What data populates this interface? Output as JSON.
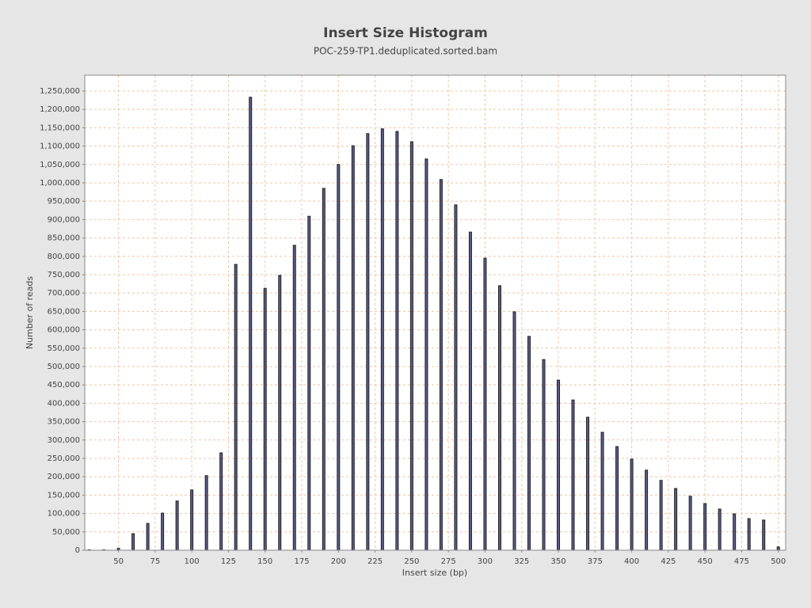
{
  "chart_data": {
    "type": "bar",
    "title": "Insert Size Histogram",
    "subtitle": "POC-259-TP1.deduplicated.sorted.bam",
    "x_label": "Insert size (bp)",
    "y_label": "Number of reads",
    "x": [
      30,
      40,
      50,
      60,
      70,
      80,
      90,
      100,
      110,
      120,
      130,
      140,
      150,
      160,
      170,
      180,
      190,
      200,
      210,
      220,
      230,
      240,
      250,
      260,
      270,
      280,
      290,
      300,
      310,
      320,
      330,
      340,
      350,
      360,
      370,
      380,
      390,
      400,
      410,
      420,
      430,
      440,
      450,
      460,
      470,
      480,
      490,
      500
    ],
    "values": [
      1000,
      1000,
      5000,
      45000,
      73000,
      101000,
      134000,
      164000,
      203000,
      265000,
      778000,
      1233000,
      713000,
      748000,
      830000,
      909000,
      985000,
      1050000,
      1101000,
      1134000,
      1147000,
      1140000,
      1112000,
      1065000,
      1009000,
      940000,
      866000,
      795000,
      720000,
      649000,
      582000,
      519000,
      463000,
      409000,
      362000,
      321000,
      282000,
      248000,
      218000,
      190000,
      168000,
      147000,
      127000,
      112000,
      99000,
      86000,
      82000,
      9000
    ],
    "color": "#5c5c8c",
    "edge_color": "#222222",
    "grid": true,
    "grid_color": "#f0c4a4",
    "xlim": [
      27,
      505
    ],
    "xticks": [
      50,
      75,
      100,
      125,
      150,
      175,
      200,
      225,
      250,
      275,
      300,
      325,
      350,
      375,
      400,
      425,
      450,
      475,
      500
    ],
    "ylim": [
      0,
      1293000
    ],
    "yticks": [
      0,
      {
        "value": 50000,
        "label": "50,000"
      },
      {
        "value": 100000,
        "label": "100,000"
      },
      {
        "value": 150000,
        "label": "150,000"
      },
      {
        "value": 200000,
        "label": "200,000"
      },
      {
        "value": 250000,
        "label": "250,000"
      },
      {
        "value": 300000,
        "label": "300,000"
      },
      {
        "value": 350000,
        "label": "350,000"
      },
      {
        "value": 400000,
        "label": "400,000"
      },
      {
        "value": 450000,
        "label": "450,000"
      },
      {
        "value": 500000,
        "label": "500,000"
      },
      {
        "value": 550000,
        "label": "550,000"
      },
      {
        "value": 600000,
        "label": "600,000"
      },
      {
        "value": 650000,
        "label": "650,000"
      },
      {
        "value": 700000,
        "label": "700,000"
      },
      {
        "value": 750000,
        "label": "750,000"
      },
      {
        "value": 800000,
        "label": "800,000"
      },
      {
        "value": 850000,
        "label": "850,000"
      },
      {
        "value": 900000,
        "label": "900,000"
      },
      {
        "value": 950000,
        "label": "950,000"
      },
      {
        "value": 1000000,
        "label": "1,000,000"
      },
      {
        "value": 1050000,
        "label": "1,050,000"
      },
      {
        "value": 1100000,
        "label": "1,100,000"
      },
      {
        "value": 1150000,
        "label": "1,150,000"
      },
      {
        "value": 1200000,
        "label": "1,200,000"
      },
      {
        "value": 1250000,
        "label": "1,250,000"
      }
    ]
  }
}
